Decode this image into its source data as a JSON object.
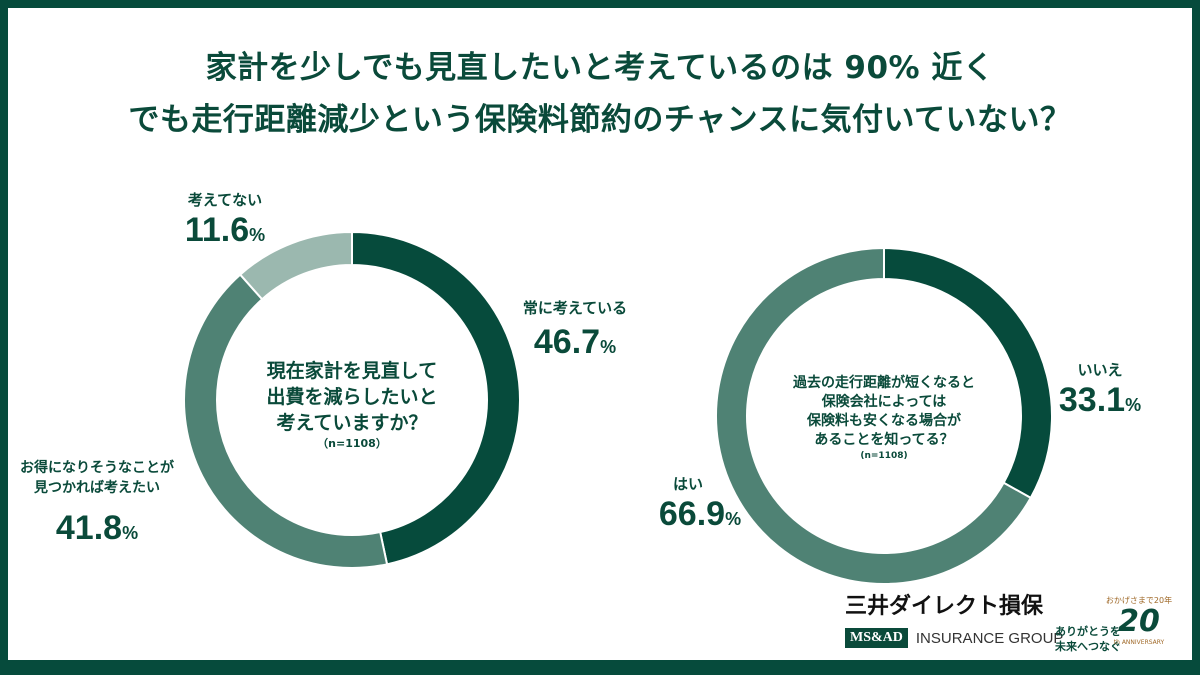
{
  "title": {
    "line1": "家計を少しでも見直したいと考えているのは 90% 近く",
    "line2": "でも走行距離減少という保険料節約のチャンスに気付いていない？"
  },
  "colors": {
    "dark": "#064b3c",
    "mid": "#4f8274",
    "light": "#9bb8af",
    "frame": "#064b3c"
  },
  "chart_data": [
    {
      "type": "pie",
      "title": "現在家計を見直して出費を減らしたいと考えていますか？",
      "n": "（n=1108）",
      "center_lines": [
        "現在家計を見直して",
        "出費を減らしたいと",
        "考えていますか？"
      ],
      "slices": [
        {
          "label": "常に考えている",
          "value": 46.7,
          "value_text": "46.7",
          "color": "#064b3c"
        },
        {
          "label": "お得になりそうなことが見つかれば考えたい",
          "label_lines": [
            "お得になりそうなことが",
            "見つかれば考えたい"
          ],
          "value": 41.8,
          "value_text": "41.8",
          "color": "#4f8274"
        },
        {
          "label": "考えてない",
          "value": 11.6,
          "value_text": "11.6",
          "color": "#9bb8af"
        }
      ]
    },
    {
      "type": "pie",
      "title": "過去の走行距離が短くなると保険会社によっては保険料も安くなる場合があることを知ってる？",
      "n": "(n=1108)",
      "center_lines": [
        "過去の走行距離が短くなると",
        "保険会社によっては",
        "保険料も安くなる場合が",
        "あることを知ってる？"
      ],
      "slices": [
        {
          "label": "いいえ",
          "value": 33.1,
          "value_text": "33.1",
          "color": "#064b3c"
        },
        {
          "label": "はい",
          "value": 66.9,
          "value_text": "66.9",
          "color": "#4f8274"
        }
      ]
    }
  ],
  "percent_sign": "%",
  "logo": {
    "name": "三井ダイレクト損保",
    "msad": "MS&AD",
    "group": "INSURANCE GROUP",
    "tagline1": "ありがとうを",
    "tagline2": "未来へつなぐ",
    "anniv_top": "おかげさまで20年",
    "anniv_num": "20",
    "anniv_sub": "th ANNIVERSARY"
  }
}
